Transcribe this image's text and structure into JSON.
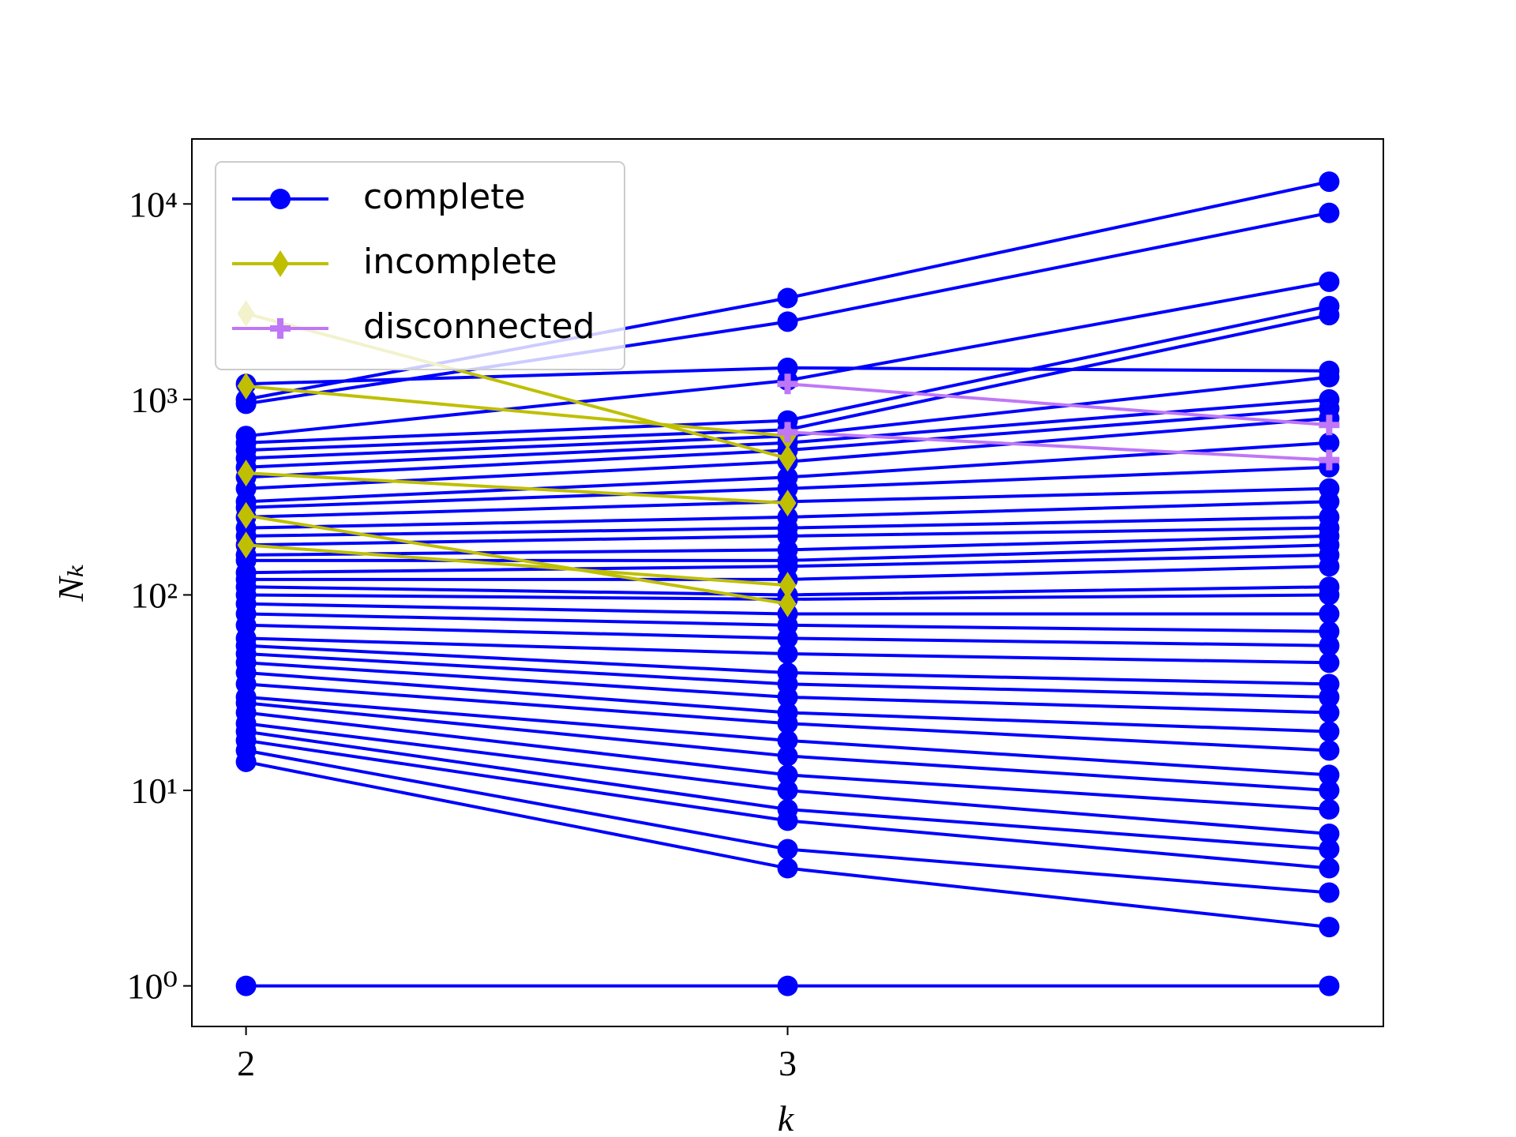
{
  "chart_data": {
    "type": "line",
    "xlabel": "k",
    "ylabel": "Nₖ",
    "x": [
      2,
      3,
      4
    ],
    "xlim": [
      1.9,
      4.1
    ],
    "xticks": [
      2,
      3
    ],
    "ylim": [
      0.62,
      21500
    ],
    "ylog": true,
    "yticks": [
      {
        "value": 1,
        "label": "10⁰"
      },
      {
        "value": 10,
        "label": "10¹"
      },
      {
        "value": 100,
        "label": "10²"
      },
      {
        "value": 1000,
        "label": "10³"
      },
      {
        "value": 10000,
        "label": "10⁴"
      }
    ],
    "legend": "upper left",
    "series": [
      {
        "name": "complete",
        "color": "#0000ff",
        "marker": "circle",
        "lines": [
          [
            1,
            1,
            1
          ],
          [
            1200,
            1450,
            1400
          ],
          [
            950,
            2500,
            9000
          ],
          [
            1000,
            3300,
            13000
          ],
          [
            650,
            1250,
            4000
          ],
          [
            600,
            780,
            3000
          ],
          [
            550,
            700,
            2700
          ],
          [
            500,
            650,
            1300
          ],
          [
            450,
            600,
            1000
          ],
          [
            400,
            550,
            900
          ],
          [
            350,
            480,
            800
          ],
          [
            300,
            400,
            600
          ],
          [
            280,
            350,
            450
          ],
          [
            250,
            300,
            350
          ],
          [
            220,
            250,
            300
          ],
          [
            200,
            220,
            250
          ],
          [
            180,
            200,
            220
          ],
          [
            160,
            170,
            200
          ],
          [
            150,
            150,
            180
          ],
          [
            130,
            140,
            160
          ],
          [
            120,
            120,
            140
          ],
          [
            110,
            100,
            110
          ],
          [
            100,
            95,
            100
          ],
          [
            90,
            80,
            80
          ],
          [
            80,
            70,
            65
          ],
          [
            70,
            60,
            55
          ],
          [
            60,
            50,
            45
          ],
          [
            55,
            40,
            35
          ],
          [
            50,
            35,
            30
          ],
          [
            45,
            30,
            25
          ],
          [
            40,
            25,
            20
          ],
          [
            35,
            22,
            16
          ],
          [
            30,
            18,
            12
          ],
          [
            28,
            15,
            10
          ],
          [
            25,
            12,
            8
          ],
          [
            22,
            10,
            6
          ],
          [
            20,
            8,
            5
          ],
          [
            18,
            7,
            4
          ],
          [
            16,
            5,
            3
          ],
          [
            14,
            4,
            2
          ]
        ]
      },
      {
        "name": "incomplete",
        "color": "#bfbf00",
        "marker": "diamond",
        "lines": [
          [
            1170,
            650,
            null
          ],
          [
            2750,
            500,
            null
          ],
          [
            420,
            295,
            null
          ],
          [
            255,
            90,
            null
          ],
          [
            180,
            112,
            null
          ]
        ]
      },
      {
        "name": "disconnected",
        "color": "#bf77f6",
        "marker": "plus",
        "lines": [
          [
            null,
            1200,
            740
          ],
          [
            null,
            680,
            490
          ]
        ]
      }
    ]
  }
}
